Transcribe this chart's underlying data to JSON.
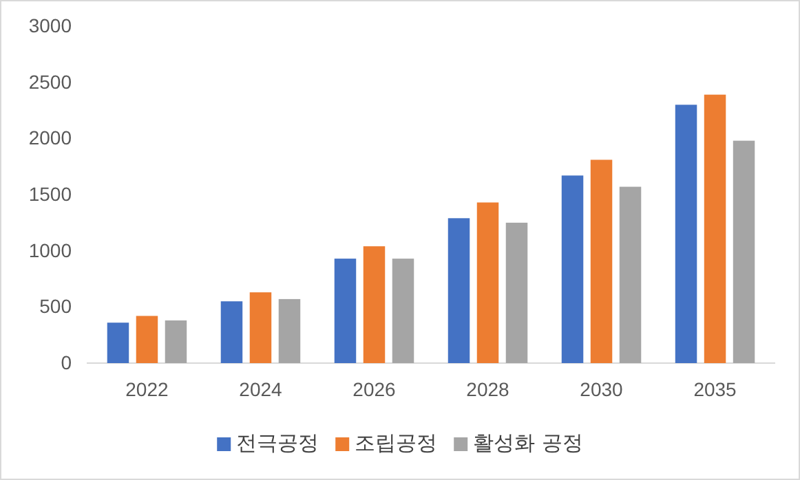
{
  "chart_data": {
    "type": "bar",
    "categories": [
      "2022",
      "2024",
      "2026",
      "2028",
      "2030",
      "2035"
    ],
    "series": [
      {
        "name": "전극공정",
        "color": "#4472c4",
        "values": [
          360,
          550,
          930,
          1290,
          1670,
          2300
        ]
      },
      {
        "name": "조립공정",
        "color": "#ed7d31",
        "values": [
          420,
          630,
          1040,
          1430,
          1810,
          2390
        ]
      },
      {
        "name": "활성화 공정",
        "color": "#a5a5a5",
        "values": [
          380,
          570,
          930,
          1250,
          1570,
          1980
        ]
      }
    ],
    "ylim": [
      0,
      3000
    ],
    "yticks": [
      0,
      500,
      1000,
      1500,
      2000,
      2500,
      3000
    ],
    "grid": false,
    "legend": "bottom"
  }
}
